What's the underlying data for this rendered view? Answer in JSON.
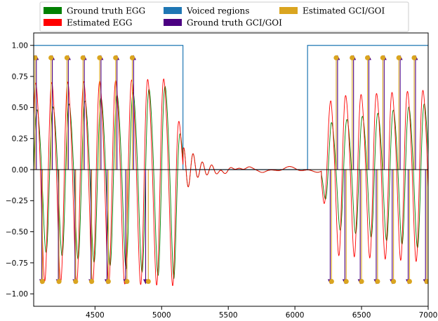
{
  "chart_data": {
    "type": "line",
    "title": "",
    "xlabel": "",
    "ylabel": "",
    "xlim": [
      4040,
      7000
    ],
    "ylim": [
      -1.1,
      1.1
    ],
    "grid": false,
    "legend_placement": "top",
    "x_ticks": [
      4500,
      5000,
      5500,
      6000,
      6500,
      7000
    ],
    "x_tick_labels": [
      "4500",
      "5000",
      "5500",
      "6000",
      "6500",
      "7000"
    ],
    "y_ticks": [
      1.0,
      0.75,
      0.5,
      0.25,
      0.0,
      -0.25,
      -0.5,
      -0.75,
      -1.0
    ],
    "y_tick_labels": [
      "1.00",
      "0.75",
      "0.50",
      "0.25",
      "0.00",
      "−0.25",
      "−0.50",
      "−0.75",
      "−1.00"
    ],
    "legend": [
      {
        "label": "Ground truth EGG",
        "color": "#008000"
      },
      {
        "label": "Estimated EGG",
        "color": "#ff0000"
      },
      {
        "label": "Voiced regions",
        "color": "#1f77b4"
      },
      {
        "label": "Ground truth GCI/GOI",
        "color": "#4b0082"
      },
      {
        "label": "Estimated GCI/GOI",
        "color": "#daa520"
      }
    ],
    "voiced_regions": [
      [
        4040,
        5160
      ],
      [
        6095,
        7000
      ]
    ],
    "voiced_level": 1.0,
    "series": [
      {
        "name": "Ground truth EGG",
        "color": "#008000",
        "segments": [
          {
            "start": 4040,
            "end": 5160,
            "period": 120,
            "phase_x": 4040,
            "amp_start": 0.55,
            "amp_end": 0.78,
            "offset": -0.05
          },
          {
            "start": 6200,
            "end": 7000,
            "period": 116,
            "phase_x": 6250,
            "amp_start": 0.4,
            "amp_end": 0.58,
            "offset": -0.02
          }
        ]
      },
      {
        "name": "Estimated EGG",
        "color": "#ff0000",
        "segments": [
          {
            "start": 4040,
            "end": 5160,
            "period": 120,
            "phase_x": 4030,
            "amp_start": 0.78,
            "amp_end": 0.82,
            "offset": -0.05
          },
          {
            "start": 6200,
            "end": 7000,
            "period": 116,
            "phase_x": 6240,
            "amp_start": 0.62,
            "amp_end": 0.68,
            "offset": -0.01
          }
        ]
      }
    ],
    "gci_goi": {
      "ground_truth": {
        "name": "Ground truth GCI/GOI",
        "color": "#4b0082",
        "top_x": [
          4060,
          4180,
          4300,
          4420,
          4545,
          4665,
          4790,
          6320,
          6440,
          6555,
          6670,
          6790,
          6905
        ],
        "bottom_x": [
          4100,
          4225,
          4350,
          4470,
          4590,
          4730,
          4880,
          6265,
          6375,
          6490,
          6610,
          6730,
          6850,
          6980
        ],
        "top_y": 0.9,
        "bottom_y": -0.9
      },
      "estimated": {
        "name": "Estimated GCI/GOI",
        "color": "#daa520",
        "top_x": [
          4050,
          4170,
          4290,
          4410,
          4535,
          4655,
          4780,
          6310,
          6430,
          6545,
          6660,
          6780,
          6895
        ],
        "bottom_x": [
          4105,
          4230,
          4355,
          4475,
          4600,
          4740,
          4900,
          6275,
          6385,
          6500,
          6620,
          6740,
          6860,
          6990
        ],
        "top_y": 0.9,
        "bottom_y": -0.9
      }
    }
  }
}
